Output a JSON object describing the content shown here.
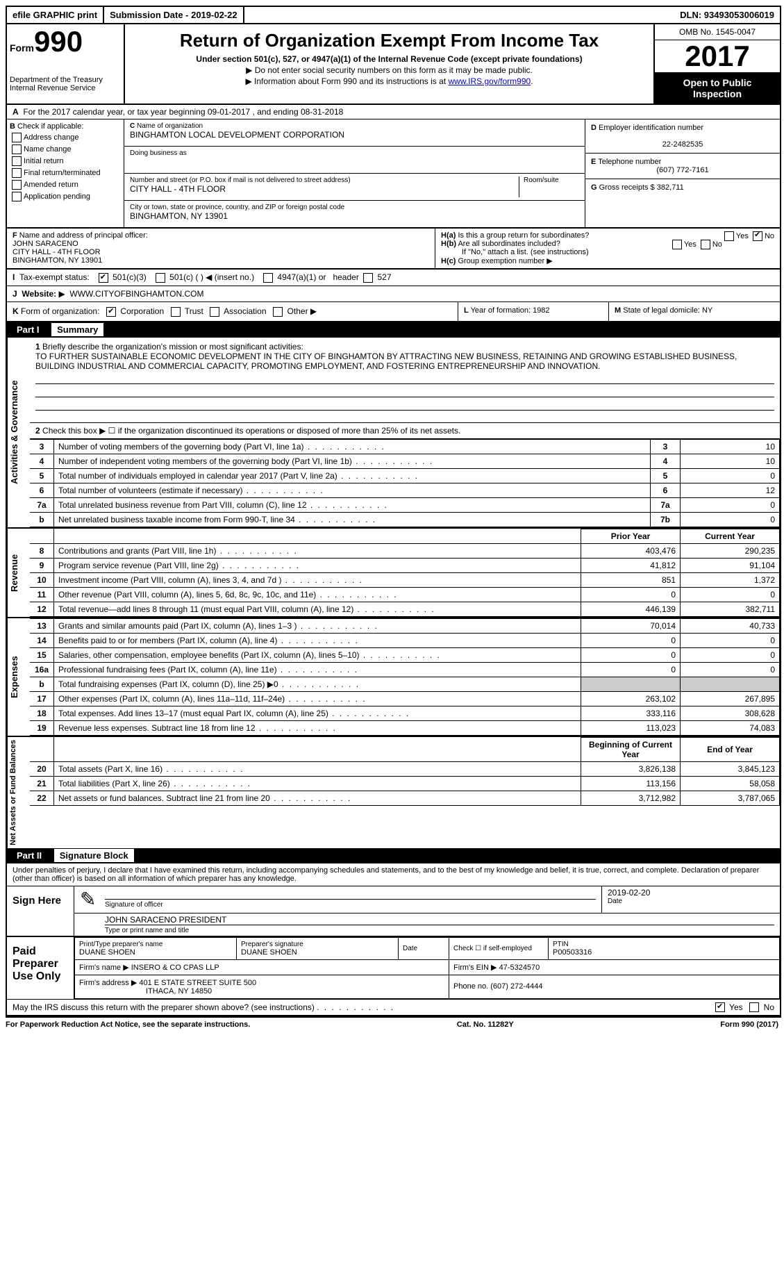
{
  "top_bar": {
    "efile": "efile GRAPHIC print",
    "submission": "Submission Date - 2019-02-22",
    "dln": "DLN: 93493053006019"
  },
  "header": {
    "form_prefix": "Form",
    "form_number": "990",
    "dept": "Department of the Treasury",
    "irs": "Internal Revenue Service",
    "title": "Return of Organization Exempt From Income Tax",
    "subtitle": "Under section 501(c), 527, or 4947(a)(1) of the Internal Revenue Code (except private foundations)",
    "note1": "Do not enter social security numbers on this form as it may be made public.",
    "note2_pre": "Information about Form 990 and its instructions is at ",
    "note2_link": "www.IRS.gov/form990",
    "omb": "OMB No. 1545-0047",
    "year": "2017",
    "open": "Open to Public Inspection"
  },
  "section_a": {
    "line": "For the 2017 calendar year, or tax year beginning 09-01-2017   , and ending 08-31-2018",
    "b_label": "Check if applicable:",
    "checks": [
      "Address change",
      "Name change",
      "Initial return",
      "Final return/terminated",
      "Amended return",
      "Application pending"
    ],
    "c_label": "Name of organization",
    "c_value": "BINGHAMTON LOCAL DEVELOPMENT CORPORATION",
    "dba_label": "Doing business as",
    "addr_label": "Number and street (or P.O. box if mail is not delivered to street address)",
    "room_label": "Room/suite",
    "addr_value": "CITY HALL - 4TH FLOOR",
    "city_label": "City or town, state or province, country, and ZIP or foreign postal code",
    "city_value": "BINGHAMTON, NY  13901",
    "d_label": "Employer identification number",
    "d_value": "22-2482535",
    "e_label": "Telephone number",
    "e_value": "(607) 772-7161",
    "g_label": "Gross receipts $",
    "g_value": "382,711"
  },
  "f_section": {
    "f_label": "Name and address of principal officer:",
    "f_name": "JOHN SARACENO",
    "f_addr1": "CITY HALL - 4TH FLOOR",
    "f_addr2": "BINGHAMTON, NY  13901",
    "ha": "Is this a group return for subordinates?",
    "hb": "Are all subordinates included?",
    "hb_note": "If \"No,\" attach a list. (see instructions)",
    "hc": "Group exemption number"
  },
  "tax_status": {
    "label": "Tax-exempt status:",
    "opts": [
      "501(c)(3)",
      "501(c) (   ) ◀ (insert no.)",
      "4947(a)(1) or",
      "527"
    ]
  },
  "website": {
    "label": "Website:",
    "value": "WWW.CITYOFBINGHAMTON.COM"
  },
  "k_section": {
    "k_label": "Form of organization:",
    "k_opts": [
      "Corporation",
      "Trust",
      "Association",
      "Other"
    ],
    "l": "Year of formation: 1982",
    "m": "State of legal domicile: NY"
  },
  "part1": {
    "label": "Part I",
    "title": "Summary",
    "line1_label": "Briefly describe the organization's mission or most significant activities:",
    "mission": "TO FURTHER SUSTAINABLE ECONOMIC DEVELOPMENT IN THE CITY OF BINGHAMTON BY ATTRACTING NEW BUSINESS, RETAINING AND GROWING ESTABLISHED BUSINESS, BUILDING INDUSTRIAL AND COMMERCIAL CAPACITY, PROMOTING EMPLOYMENT, AND FOSTERING ENTREPRENEURSHIP AND INNOVATION.",
    "line2": "Check this box ▶ ☐  if the organization discontinued its operations or disposed of more than 25% of its net assets.",
    "gov_lines": [
      {
        "n": "3",
        "d": "Number of voting members of the governing body (Part VI, line 1a)",
        "b": "3",
        "v": "10"
      },
      {
        "n": "4",
        "d": "Number of independent voting members of the governing body (Part VI, line 1b)",
        "b": "4",
        "v": "10"
      },
      {
        "n": "5",
        "d": "Total number of individuals employed in calendar year 2017 (Part V, line 2a)",
        "b": "5",
        "v": "0"
      },
      {
        "n": "6",
        "d": "Total number of volunteers (estimate if necessary)",
        "b": "6",
        "v": "12"
      },
      {
        "n": "7a",
        "d": "Total unrelated business revenue from Part VIII, column (C), line 12",
        "b": "7a",
        "v": "0"
      },
      {
        "n": "b",
        "d": "Net unrelated business taxable income from Form 990-T, line 34",
        "b": "7b",
        "v": "0"
      }
    ],
    "col_prior": "Prior Year",
    "col_current": "Current Year",
    "revenue_lines": [
      {
        "n": "8",
        "d": "Contributions and grants (Part VIII, line 1h)",
        "p": "403,476",
        "c": "290,235"
      },
      {
        "n": "9",
        "d": "Program service revenue (Part VIII, line 2g)",
        "p": "41,812",
        "c": "91,104"
      },
      {
        "n": "10",
        "d": "Investment income (Part VIII, column (A), lines 3, 4, and 7d )",
        "p": "851",
        "c": "1,372"
      },
      {
        "n": "11",
        "d": "Other revenue (Part VIII, column (A), lines 5, 6d, 8c, 9c, 10c, and 11e)",
        "p": "0",
        "c": "0"
      },
      {
        "n": "12",
        "d": "Total revenue—add lines 8 through 11 (must equal Part VIII, column (A), line 12)",
        "p": "446,139",
        "c": "382,711"
      }
    ],
    "expense_lines": [
      {
        "n": "13",
        "d": "Grants and similar amounts paid (Part IX, column (A), lines 1–3 )",
        "p": "70,014",
        "c": "40,733"
      },
      {
        "n": "14",
        "d": "Benefits paid to or for members (Part IX, column (A), line 4)",
        "p": "0",
        "c": "0"
      },
      {
        "n": "15",
        "d": "Salaries, other compensation, employee benefits (Part IX, column (A), lines 5–10)",
        "p": "0",
        "c": "0"
      },
      {
        "n": "16a",
        "d": "Professional fundraising fees (Part IX, column (A), line 11e)",
        "p": "0",
        "c": "0"
      },
      {
        "n": "b",
        "d": "Total fundraising expenses (Part IX, column (D), line 25) ▶0",
        "p": "",
        "c": "",
        "shaded": true
      },
      {
        "n": "17",
        "d": "Other expenses (Part IX, column (A), lines 11a–11d, 11f–24e)",
        "p": "263,102",
        "c": "267,895"
      },
      {
        "n": "18",
        "d": "Total expenses. Add lines 13–17 (must equal Part IX, column (A), line 25)",
        "p": "333,116",
        "c": "308,628"
      },
      {
        "n": "19",
        "d": "Revenue less expenses. Subtract line 18 from line 12",
        "p": "113,023",
        "c": "74,083"
      }
    ],
    "col_begin": "Beginning of Current Year",
    "col_end": "End of Year",
    "net_lines": [
      {
        "n": "20",
        "d": "Total assets (Part X, line 16)",
        "p": "3,826,138",
        "c": "3,845,123"
      },
      {
        "n": "21",
        "d": "Total liabilities (Part X, line 26)",
        "p": "113,156",
        "c": "58,058"
      },
      {
        "n": "22",
        "d": "Net assets or fund balances. Subtract line 21 from line 20",
        "p": "3,712,982",
        "c": "3,787,065"
      }
    ]
  },
  "part2": {
    "label": "Part II",
    "title": "Signature Block",
    "text": "Under penalties of perjury, I declare that I have examined this return, including accompanying schedules and statements, and to the best of my knowledge and belief, it is true, correct, and complete. Declaration of preparer (other than officer) is based on all information of which preparer has any knowledge.",
    "sign_here": "Sign Here",
    "sig_officer_label": "Signature of officer",
    "date_label": "Date",
    "sig_date": "2019-02-20",
    "name_title": "JOHN SARACENO PRESIDENT",
    "name_label": "Type or print name and title",
    "paid": "Paid Preparer Use Only",
    "prep_name_label": "Print/Type preparer's name",
    "prep_name": "DUANE SHOEN",
    "prep_sig_label": "Preparer's signature",
    "prep_sig": "DUANE SHOEN",
    "check_label": "Check ☐ if self-employed",
    "ptin_label": "PTIN",
    "ptin": "P00503316",
    "firm_name_label": "Firm's name   ▶",
    "firm_name": "INSERO & CO CPAS LLP",
    "firm_ein_label": "Firm's EIN ▶",
    "firm_ein": "47-5324570",
    "firm_addr_label": "Firm's address ▶",
    "firm_addr1": "401 E STATE STREET SUITE 500",
    "firm_addr2": "ITHACA, NY  14850",
    "phone_label": "Phone no.",
    "phone": "(607) 272-4444",
    "discuss": "May the IRS discuss this return with the preparer shown above? (see instructions)"
  },
  "footer": {
    "left": "For Paperwork Reduction Act Notice, see the separate instructions.",
    "mid": "Cat. No. 11282Y",
    "right": "Form 990 (2017)"
  }
}
